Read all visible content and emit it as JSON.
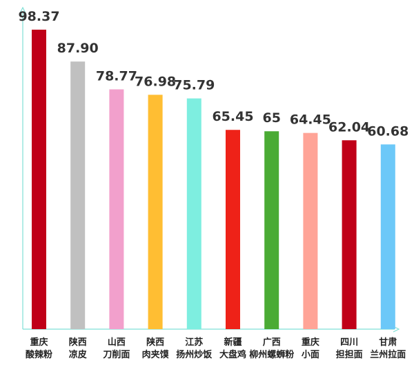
{
  "chart_data": {
    "type": "bar",
    "title": "",
    "xlabel": "",
    "ylabel": "",
    "ylim": [
      0,
      100
    ],
    "grid": false,
    "categories": [
      [
        "重庆",
        "酸辣粉"
      ],
      [
        "陕西",
        "凉皮"
      ],
      [
        "山西",
        "刀削面"
      ],
      [
        "陕西",
        "肉夹馍"
      ],
      [
        "江苏",
        "扬州炒饭"
      ],
      [
        "新疆",
        "大盘鸡"
      ],
      [
        "广西",
        "柳州螺蛳粉"
      ],
      [
        "重庆",
        "小面"
      ],
      [
        "四川",
        "担担面"
      ],
      [
        "甘肃",
        "兰州拉面"
      ]
    ],
    "values": [
      98.37,
      87.9,
      78.77,
      76.98,
      75.79,
      65.45,
      65,
      64.45,
      62.04,
      60.68
    ],
    "value_labels": [
      "98.37",
      "87.90",
      "78.77",
      "76.98",
      "75.79",
      "65.45",
      "65",
      "64.45",
      "62.04",
      "60.68"
    ],
    "colors": [
      "#c00018",
      "#c0c0c0",
      "#f2a0cc",
      "#ffbe33",
      "#7eeee0",
      "#ee2218",
      "#4aab34",
      "#ffa497",
      "#c00018",
      "#6cc8f8"
    ],
    "axis_color": "#7fe0d6"
  }
}
